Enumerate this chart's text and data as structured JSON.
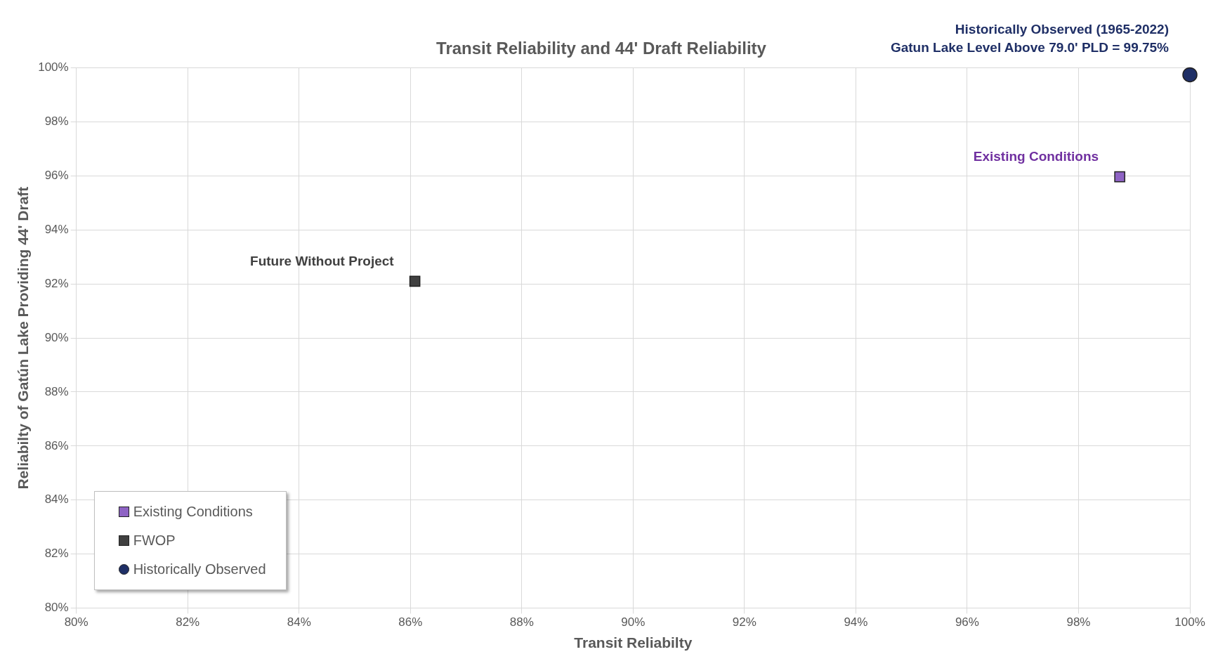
{
  "chart_data": {
    "type": "scatter",
    "title": "Transit Reliability and 44' Draft Reliability",
    "xlabel": "Transit Reliabilty",
    "ylabel": "Reliabilty of Gatún Lake Providing 44' Draft",
    "xlim": [
      80,
      100
    ],
    "xticks": [
      {
        "value": 80,
        "label": "80%"
      },
      {
        "value": 82,
        "label": "82%"
      },
      {
        "value": 84,
        "label": "84%"
      },
      {
        "value": 86,
        "label": "86%"
      },
      {
        "value": 88,
        "label": "88%"
      },
      {
        "value": 90,
        "label": "90%"
      },
      {
        "value": 92,
        "label": "92%"
      },
      {
        "value": 94,
        "label": "94%"
      },
      {
        "value": 96,
        "label": "96%"
      },
      {
        "value": 98,
        "label": "98%"
      },
      {
        "value": 100,
        "label": "100%"
      }
    ],
    "ylim": [
      80,
      100
    ],
    "yticks": [
      {
        "value": 80,
        "label": "80%"
      },
      {
        "value": 82,
        "label": "82%"
      },
      {
        "value": 84,
        "label": "84%"
      },
      {
        "value": 86,
        "label": "86%"
      },
      {
        "value": 88,
        "label": "88%"
      },
      {
        "value": 90,
        "label": "90%"
      },
      {
        "value": 92,
        "label": "92%"
      },
      {
        "value": 94,
        "label": "94%"
      },
      {
        "value": 96,
        "label": "96%"
      },
      {
        "value": 98,
        "label": "98%"
      },
      {
        "value": 100,
        "label": "100%"
      }
    ],
    "grid": true,
    "legend": "bottom left",
    "series": [
      {
        "name": "Existing Conditions",
        "color": "#8e63c4",
        "marker": "square",
        "x": [
          98.74
        ],
        "values": [
          95.97
        ]
      },
      {
        "name": "FWOP",
        "color": "#404040",
        "marker": "square",
        "x": [
          86.08
        ],
        "values": [
          92.1
        ]
      },
      {
        "name": "Historically Observed",
        "color": "#1f2f66",
        "marker": "circle",
        "x": [
          100
        ],
        "values": [
          99.75
        ]
      }
    ],
    "annotations": [
      {
        "text": "Existing Conditions",
        "x": 98.74,
        "y": 95.97
      },
      {
        "text": "Future Without Project",
        "x": 86.08,
        "y": 92.1
      },
      {
        "text": "Historically Observed (1965-2022)\nGatun Lake Level Above 79.0' PLD = 99.75%",
        "x": 100,
        "y": 99.75
      }
    ]
  }
}
